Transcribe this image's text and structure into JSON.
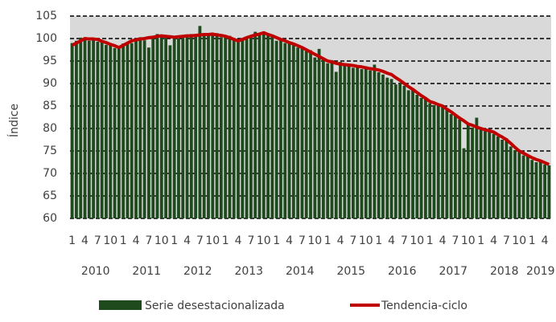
{
  "chart_data": {
    "type": "bar",
    "y_label": "Índice",
    "categories": [
      "1",
      null,
      null,
      "4",
      null,
      null,
      "7",
      null,
      null,
      "10",
      null,
      null,
      "1",
      null,
      null,
      "4",
      null,
      null,
      "7",
      null,
      null,
      "10",
      null,
      null,
      "1",
      null,
      null,
      "4",
      null,
      null,
      "7",
      null,
      null,
      "10",
      null,
      null,
      "1",
      null,
      null,
      "4",
      null,
      null,
      "7",
      null,
      null,
      "10",
      null,
      null,
      "1",
      null,
      null,
      "4",
      null,
      null,
      "7",
      null,
      null,
      "10",
      null,
      null,
      "1",
      null,
      null,
      "4",
      null,
      null,
      "7",
      null,
      null,
      "10",
      null,
      null,
      "1",
      null,
      null,
      "4",
      null,
      null,
      "7",
      null,
      null,
      "10",
      null,
      null,
      "1",
      null,
      null,
      "4",
      null,
      null,
      "7",
      null,
      null,
      "10",
      null,
      null,
      "1",
      null,
      null,
      "4",
      null,
      null,
      "7",
      null,
      null,
      "10",
      null,
      null,
      "1",
      null,
      null,
      "4",
      null
    ],
    "years": [
      "2010",
      "2011",
      "2012",
      "2013",
      "2014",
      "2015",
      "2016",
      "2017",
      "2018",
      "2019"
    ],
    "series": [
      {
        "name": "Serie desestacionalizada",
        "type": "bar",
        "color": "#1e4a1e",
        "values": [
          99.0,
          99.5,
          100.2,
          100.0,
          99.5,
          100.1,
          99.3,
          99.6,
          98.6,
          98.9,
          97.9,
          98.2,
          98.9,
          99.2,
          99.0,
          99.8,
          100.3,
          99.6,
          98.0,
          100.4,
          101.0,
          100.3,
          100.8,
          98.5,
          100.6,
          100.0,
          100.8,
          100.4,
          101.0,
          100.5,
          102.8,
          100.6,
          101.2,
          100.7,
          101.2,
          100.3,
          100.2,
          100.6,
          99.6,
          99.3,
          100.0,
          99.9,
          100.8,
          101.5,
          101.2,
          101.0,
          100.8,
          100.4,
          99.5,
          100.0,
          99.0,
          99.2,
          98.5,
          98.0,
          97.8,
          97.2,
          97.4,
          95.8,
          97.7,
          95.5,
          94.5,
          95.2,
          92.6,
          94.8,
          94.0,
          94.3,
          93.5,
          94.1,
          93.2,
          93.8,
          92.9,
          94.2,
          92.5,
          92.0,
          91.3,
          91.0,
          89.8,
          90.2,
          89.5,
          88.5,
          88.9,
          87.5,
          86.8,
          86.9,
          85.6,
          85.2,
          85.5,
          84.8,
          84.5,
          83.2,
          82.8,
          82.0,
          75.6,
          81.2,
          80.2,
          82.4,
          79.8,
          79.4,
          79.8,
          78.8,
          78.2,
          77.5,
          77.8,
          76.0,
          75.2,
          74.8,
          74.0,
          74.2,
          73.0,
          72.5,
          72.9,
          72.0,
          71.8
        ]
      },
      {
        "name": "Tendencia-ciclo",
        "type": "line",
        "color": "#c00000",
        "values": [
          98.5,
          99.0,
          99.5,
          100.0,
          99.9,
          99.9,
          99.8,
          99.4,
          99.1,
          98.7,
          98.4,
          98.0,
          98.5,
          99.0,
          99.5,
          99.7,
          99.9,
          100.0,
          100.2,
          100.3,
          100.5,
          100.6,
          100.5,
          100.4,
          100.3,
          100.4,
          100.5,
          100.6,
          100.6,
          100.7,
          100.8,
          100.9,
          100.9,
          101.0,
          100.8,
          100.7,
          100.5,
          100.2,
          99.8,
          99.5,
          99.8,
          100.2,
          100.5,
          100.8,
          101.0,
          101.3,
          100.9,
          100.6,
          100.2,
          99.8,
          99.5,
          99.1,
          98.8,
          98.4,
          98.0,
          97.5,
          97.0,
          96.5,
          96.0,
          95.5,
          95.0,
          94.8,
          94.5,
          94.3,
          94.2,
          94.1,
          94.0,
          93.8,
          93.7,
          93.5,
          93.3,
          93.2,
          93.0,
          92.7,
          92.3,
          92.0,
          91.3,
          90.7,
          90.0,
          89.3,
          88.7,
          88.0,
          87.3,
          86.7,
          86.0,
          85.7,
          85.3,
          85.0,
          84.3,
          83.7,
          83.0,
          82.3,
          81.7,
          81.0,
          80.7,
          80.3,
          80.0,
          79.7,
          79.5,
          79.2,
          78.6,
          78.1,
          77.5,
          76.7,
          75.8,
          75.0,
          74.5,
          74.0,
          73.5,
          73.1,
          72.8,
          72.4,
          72.0
        ]
      }
    ],
    "ylim": [
      60,
      105
    ],
    "yticks": [
      60,
      65,
      70,
      75,
      80,
      85,
      90,
      95,
      100,
      105
    ],
    "grid": true,
    "background": "#d9d9d9",
    "legend": "bottom"
  }
}
